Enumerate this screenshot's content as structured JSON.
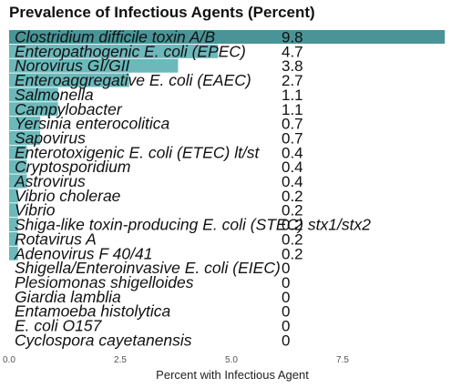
{
  "chart_data": {
    "type": "bar",
    "orientation": "horizontal",
    "title": "Prevalence of Infectious Agents (Percent)",
    "xlabel": "Percent with Infectious Agent",
    "ylabel": "",
    "xlim": [
      0,
      10
    ],
    "x_ticks": [
      "0.0",
      "2.5",
      "5.0",
      "7.5"
    ],
    "x_tick_values": [
      0,
      2.5,
      5.0,
      7.5
    ],
    "grid": false,
    "colors": {
      "top_bar": "#4a9498",
      "bar": "#6cb8bb"
    },
    "categories": [
      "Clostridium difficile toxin A/B",
      "Enteropathogenic E. coli (EPEC)",
      "Norovirus GI/GII",
      "Enteroaggregative E. coli (EAEC)",
      "Salmonella",
      "Campylobacter",
      "Yersinia enterocolitica",
      "Sapovirus",
      "Enterotoxigenic E. coli (ETEC) lt/st",
      "Cryptosporidium",
      "Astrovirus",
      "Vibrio cholerae",
      "Vibrio",
      "Shiga-like toxin-producing E. coli (STEC) stx1/stx2",
      "Rotavirus A",
      "Adenovirus F 40/41",
      "Shigella/Enteroinvasive E. coli (EIEC)",
      "Plesiomonas shigelloides",
      "Giardia lamblia",
      "Entamoeba histolytica",
      "E. coli O157",
      "Cyclospora cayetanensis"
    ],
    "values": [
      9.8,
      4.7,
      3.8,
      2.7,
      1.1,
      1.1,
      0.7,
      0.7,
      0.4,
      0.4,
      0.4,
      0.2,
      0.2,
      0.2,
      0.2,
      0.2,
      0,
      0,
      0,
      0,
      0,
      0
    ],
    "value_labels": [
      "9.8",
      "4.7",
      "3.8",
      "2.7",
      "1.1",
      "1.1",
      "0.7",
      "0.7",
      "0.4",
      "0.4",
      "0.4",
      "0.2",
      "0.2",
      "0.2",
      "0.2",
      "0.2",
      "0",
      "0",
      "0",
      "0",
      "0",
      "0"
    ]
  }
}
